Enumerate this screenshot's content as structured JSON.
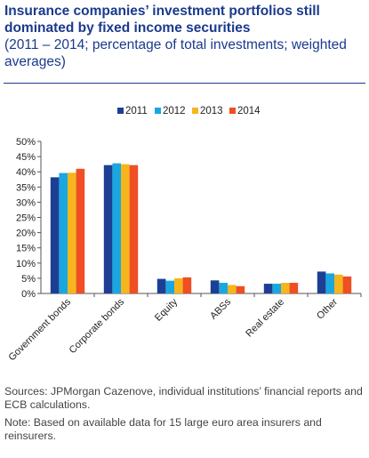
{
  "title": "Insurance companies’ investment portfolios still dominated by fixed income securities",
  "subtitle": "(2011 – 2014; percentage of total investments; weighted averages)",
  "sources": "Sources: JPMorgan Cazenove, individual institutions’ financial reports and ECB calculations.",
  "note": "Note: Based on available data for 15 large euro area insurers and reinsurers.",
  "chart_data": {
    "type": "bar",
    "categories": [
      "Government bonds",
      "Corporate bonds",
      "Equity",
      "ABSs",
      "Real estate",
      "Other"
    ],
    "series": [
      {
        "name": "2011",
        "color": "#1c3f94",
        "values": [
          38.2,
          42.2,
          4.8,
          4.3,
          3.2,
          7.2
        ]
      },
      {
        "name": "2012",
        "color": "#1aa7e0",
        "values": [
          39.6,
          42.8,
          4.2,
          3.5,
          3.2,
          6.6
        ]
      },
      {
        "name": "2013",
        "color": "#f6b51c",
        "values": [
          39.7,
          42.5,
          5.0,
          2.8,
          3.5,
          6.2
        ]
      },
      {
        "name": "2014",
        "color": "#f04e23",
        "values": [
          41.0,
          42.2,
          5.3,
          2.4,
          3.5,
          5.6
        ]
      }
    ],
    "ylim": [
      0,
      50
    ],
    "yticks": [
      "0%",
      "5%",
      "10%",
      "15%",
      "20%",
      "25%",
      "30%",
      "35%",
      "40%",
      "45%",
      "50%"
    ],
    "grid": false,
    "legend": "top"
  }
}
